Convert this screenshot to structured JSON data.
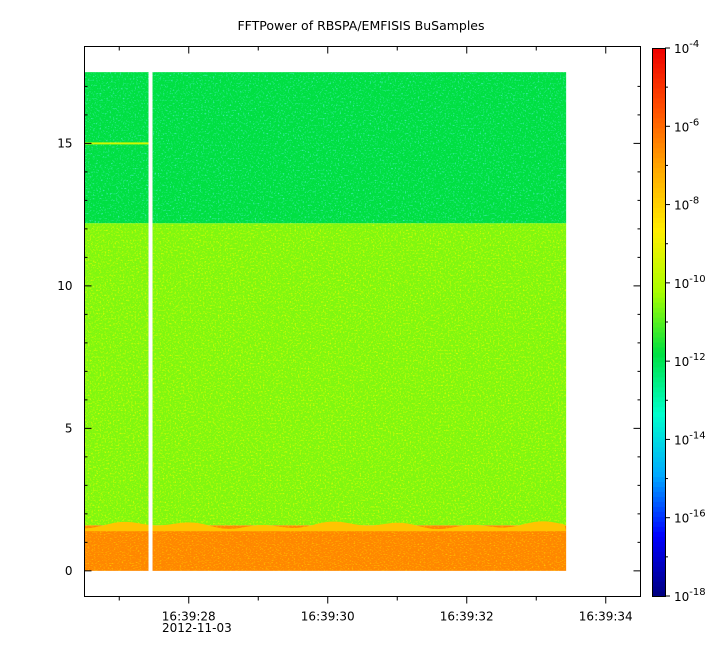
{
  "chart_data": {
    "type": "heatmap",
    "title": "FFTPower of RBSPA/EMFISIS  BuSamples",
    "xlabel": "",
    "ylabel": "",
    "x_range": [
      "16:39:26.5",
      "16:39:34.5"
    ],
    "x_data_range": [
      "16:39:26.5",
      "16:39:33.43"
    ],
    "x_gap": {
      "time": "16:39:27.45"
    },
    "x_ticks": [
      {
        "time": "16:39:28",
        "label": "16:39:28"
      },
      {
        "time": "16:39:30",
        "label": "16:39:30"
      },
      {
        "time": "16:39:32",
        "label": "16:39:32"
      },
      {
        "time": "16:39:34",
        "label": "16:39:34"
      }
    ],
    "x_minor_ticks": [
      "16:39:27",
      "16:39:29",
      "16:39:31",
      "16:39:33"
    ],
    "date_label": "2012-11-03",
    "y_range": [
      -0.9,
      18.4
    ],
    "y_data_range": [
      0,
      17.5
    ],
    "y_ticks": [
      0,
      5,
      10,
      15
    ],
    "grid": false,
    "colorbar": {
      "scale": "log",
      "range": [
        1e-18,
        0.0001
      ],
      "tick_exponents": [
        -18,
        -16,
        -14,
        -12,
        -10,
        -8,
        -6,
        -4
      ],
      "tick_base": "10",
      "colors": [
        "#00007f",
        "#0000ff",
        "#00aaff",
        "#00ffcc",
        "#00e040",
        "#a8ff00",
        "#ffee00",
        "#ffaa00",
        "#ff5000",
        "#ee0000"
      ]
    },
    "regions": [
      {
        "y_range": [
          0,
          1.6
        ],
        "log10_power": -6.5,
        "note": ""
      },
      {
        "y_range": [
          1.6,
          12.2
        ],
        "log10_power": -10.6,
        "note": ""
      },
      {
        "y_range": [
          12.2,
          17.5
        ],
        "log10_power": -11.8,
        "note": ""
      }
    ],
    "feature_lines": [
      {
        "y": 15.0,
        "x_range": [
          "16:39:26.5",
          "16:39:27.45"
        ],
        "log10_power": -9.5
      }
    ]
  }
}
